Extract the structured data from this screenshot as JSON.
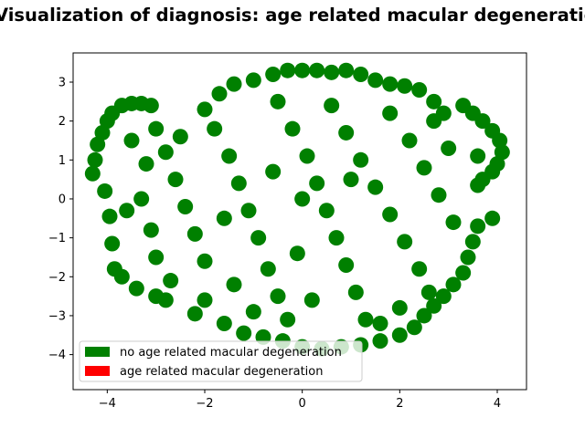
{
  "chart_data": {
    "type": "scatter",
    "title": "Visualization of diagnosis: age related macular degeneration",
    "xlabel": "",
    "ylabel": "",
    "xlim": [
      -4.7,
      4.6
    ],
    "ylim": [
      -4.9,
      3.75
    ],
    "xticks": [
      -4,
      -2,
      0,
      2,
      4
    ],
    "yticks": [
      -4,
      -3,
      -2,
      -1,
      0,
      1,
      2,
      3
    ],
    "xtick_labels": [
      "−4",
      "−2",
      "0",
      "2",
      "4"
    ],
    "ytick_labels": [
      "−4",
      "−3",
      "−2",
      "−1",
      "0",
      "1",
      "2",
      "3"
    ],
    "grid": false,
    "legend_position": "lower-left",
    "legend": [
      {
        "label": "no age related macular degeneration",
        "color": "#008000"
      },
      {
        "label": "age related macular degeneration",
        "color": "#ff0000"
      }
    ],
    "series": [
      {
        "name": "no age related macular degeneration",
        "color": "#008000",
        "points": [
          [
            -4.3,
            0.65
          ],
          [
            -4.25,
            1.0
          ],
          [
            -4.2,
            1.4
          ],
          [
            -4.1,
            1.7
          ],
          [
            -4.0,
            2.0
          ],
          [
            -3.9,
            2.2
          ],
          [
            -3.7,
            2.4
          ],
          [
            -3.5,
            2.45
          ],
          [
            -3.3,
            2.45
          ],
          [
            -3.1,
            2.4
          ],
          [
            -4.05,
            0.2
          ],
          [
            -3.95,
            -0.45
          ],
          [
            -3.9,
            -1.15
          ],
          [
            -3.85,
            -1.8
          ],
          [
            -3.7,
            -2.0
          ],
          [
            -3.4,
            -2.3
          ],
          [
            -3.0,
            -2.5
          ],
          [
            -2.8,
            -2.6
          ],
          [
            -2.2,
            -2.95
          ],
          [
            -2.0,
            2.3
          ],
          [
            -1.7,
            2.7
          ],
          [
            -1.4,
            2.95
          ],
          [
            -1.0,
            3.05
          ],
          [
            -0.6,
            3.2
          ],
          [
            -0.3,
            3.3
          ],
          [
            0.0,
            3.3
          ],
          [
            0.3,
            3.3
          ],
          [
            0.6,
            3.25
          ],
          [
            0.9,
            3.3
          ],
          [
            1.2,
            3.2
          ],
          [
            1.5,
            3.05
          ],
          [
            1.8,
            2.95
          ],
          [
            2.1,
            2.9
          ],
          [
            2.4,
            2.8
          ],
          [
            2.7,
            2.5
          ],
          [
            2.9,
            2.2
          ],
          [
            3.3,
            2.4
          ],
          [
            3.5,
            2.2
          ],
          [
            3.7,
            2.0
          ],
          [
            3.9,
            1.75
          ],
          [
            4.05,
            1.5
          ],
          [
            4.1,
            1.2
          ],
          [
            4.0,
            0.9
          ],
          [
            3.9,
            0.7
          ],
          [
            3.7,
            0.5
          ],
          [
            3.6,
            0.35
          ],
          [
            3.9,
            -0.5
          ],
          [
            3.6,
            -0.7
          ],
          [
            3.5,
            -1.1
          ],
          [
            3.4,
            -1.5
          ],
          [
            3.3,
            -1.9
          ],
          [
            3.1,
            -2.2
          ],
          [
            2.9,
            -2.5
          ],
          [
            2.7,
            -2.75
          ],
          [
            2.5,
            -3.0
          ],
          [
            2.3,
            -3.3
          ],
          [
            2.0,
            -3.5
          ],
          [
            1.6,
            -3.65
          ],
          [
            1.2,
            -3.75
          ],
          [
            0.8,
            -3.8
          ],
          [
            0.4,
            -3.85
          ],
          [
            0.0,
            -3.8
          ],
          [
            -0.4,
            -3.65
          ],
          [
            -0.8,
            -3.55
          ],
          [
            -1.2,
            -3.45
          ],
          [
            -1.6,
            -3.2
          ],
          [
            -2.0,
            -2.6
          ],
          [
            -3.0,
            1.8
          ],
          [
            -2.8,
            1.2
          ],
          [
            -2.6,
            0.5
          ],
          [
            -2.4,
            -0.2
          ],
          [
            -2.2,
            -0.9
          ],
          [
            -2.0,
            -1.6
          ],
          [
            -3.2,
            0.9
          ],
          [
            -3.3,
            0.0
          ],
          [
            -3.1,
            -0.8
          ],
          [
            -3.0,
            -1.5
          ],
          [
            -2.7,
            -2.1
          ],
          [
            -1.8,
            1.8
          ],
          [
            -1.5,
            1.1
          ],
          [
            -1.3,
            0.4
          ],
          [
            -1.1,
            -0.3
          ],
          [
            -0.9,
            -1.0
          ],
          [
            -0.7,
            -1.8
          ],
          [
            -0.5,
            -2.5
          ],
          [
            -1.4,
            -2.2
          ],
          [
            -1.0,
            -2.9
          ],
          [
            -0.3,
            -3.1
          ],
          [
            -0.5,
            2.5
          ],
          [
            -0.2,
            1.8
          ],
          [
            0.1,
            1.1
          ],
          [
            0.3,
            0.4
          ],
          [
            0.5,
            -0.3
          ],
          [
            0.7,
            -1.0
          ],
          [
            0.9,
            -1.7
          ],
          [
            1.1,
            -2.4
          ],
          [
            1.3,
            -3.1
          ],
          [
            0.6,
            2.4
          ],
          [
            0.9,
            1.7
          ],
          [
            1.2,
            1.0
          ],
          [
            1.5,
            0.3
          ],
          [
            1.8,
            -0.4
          ],
          [
            2.1,
            -1.1
          ],
          [
            2.4,
            -1.8
          ],
          [
            2.6,
            -2.4
          ],
          [
            1.8,
            2.2
          ],
          [
            2.2,
            1.5
          ],
          [
            2.5,
            0.8
          ],
          [
            2.8,
            0.1
          ],
          [
            3.1,
            -0.6
          ],
          [
            3.0,
            1.3
          ],
          [
            2.7,
            2.0
          ],
          [
            2.0,
            -2.8
          ],
          [
            1.6,
            -3.2
          ],
          [
            0.2,
            -2.6
          ],
          [
            -0.1,
            -1.4
          ],
          [
            0.0,
            0.0
          ],
          [
            -0.6,
            0.7
          ],
          [
            1.0,
            0.5
          ],
          [
            -1.6,
            -0.5
          ],
          [
            -2.5,
            1.6
          ],
          [
            -3.5,
            1.5
          ],
          [
            -3.6,
            -0.3
          ],
          [
            3.6,
            1.1
          ]
        ]
      },
      {
        "name": "age related macular degeneration",
        "color": "#ff0000",
        "points": []
      }
    ]
  }
}
